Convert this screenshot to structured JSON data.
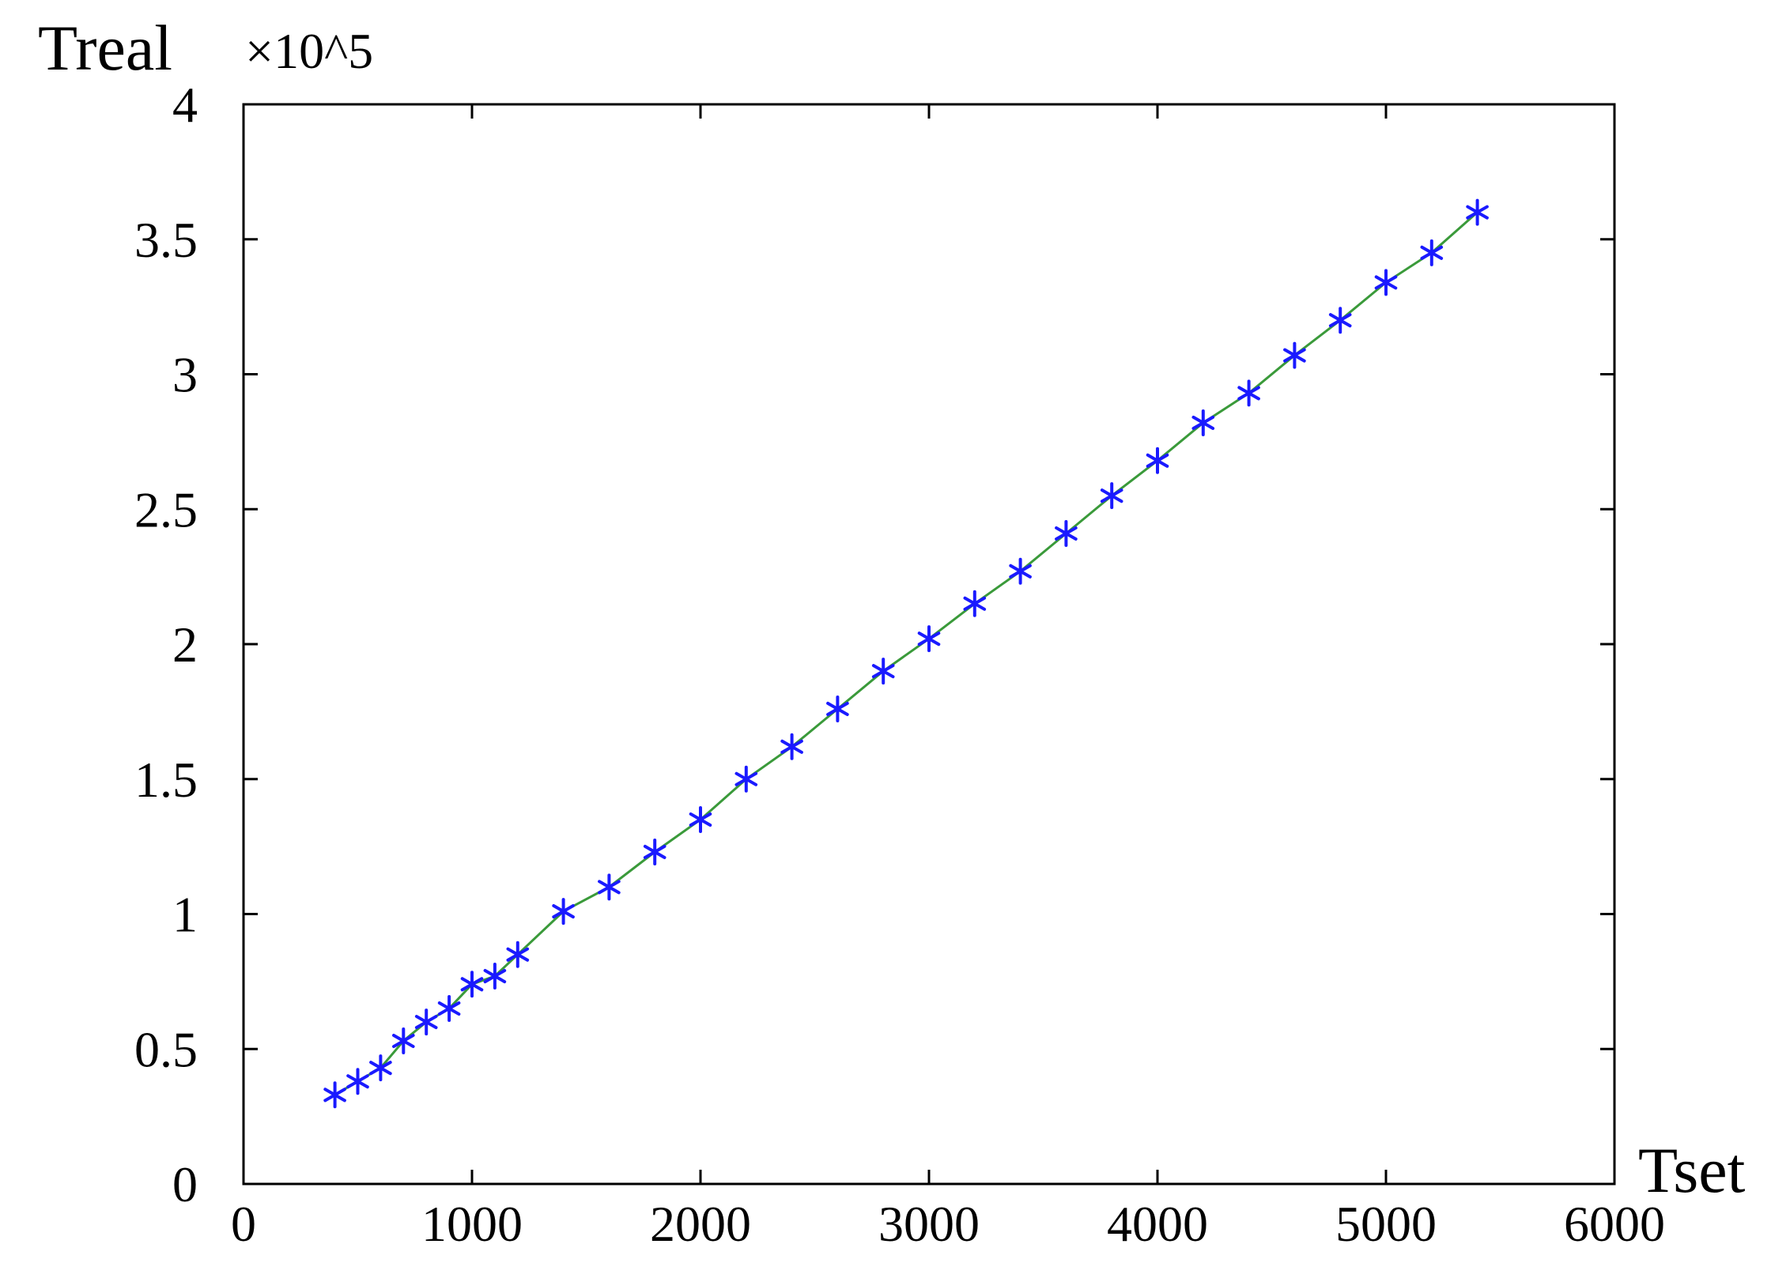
{
  "chart_data": {
    "type": "line",
    "title": "",
    "xlabel": "Tset",
    "ylabel": "Treal",
    "y_multiplier": "×10^5",
    "xlim": [
      0,
      6000
    ],
    "ylim": [
      0,
      4
    ],
    "x_ticks": [
      "0",
      "1000",
      "2000",
      "3000",
      "4000",
      "5000",
      "6000"
    ],
    "y_ticks": [
      "0",
      "0.5",
      "1",
      "1.5",
      "2",
      "2.5",
      "3",
      "3.5",
      "4"
    ],
    "grid": false,
    "colors": {
      "markers": "#1a1aff",
      "fit_line": "#3a9a3a",
      "axes": "#000000"
    },
    "series": [
      {
        "marker": "asterisk",
        "x": [
          400,
          500,
          600,
          700,
          800,
          900,
          1000,
          1100,
          1200,
          1400,
          1600,
          1800,
          2000,
          2200,
          2400,
          2600,
          2800,
          3000,
          3200,
          3400,
          3600,
          3800,
          4000,
          4200,
          4400,
          4600,
          4800,
          5000,
          5200,
          5400
        ],
        "y": [
          0.33,
          0.38,
          0.43,
          0.53,
          0.6,
          0.65,
          0.74,
          0.77,
          0.85,
          1.01,
          1.1,
          1.23,
          1.35,
          1.5,
          1.62,
          1.76,
          1.9,
          2.02,
          2.15,
          2.27,
          2.41,
          2.55,
          2.68,
          2.82,
          2.93,
          3.07,
          3.2,
          3.34,
          3.45,
          3.6
        ]
      }
    ]
  }
}
